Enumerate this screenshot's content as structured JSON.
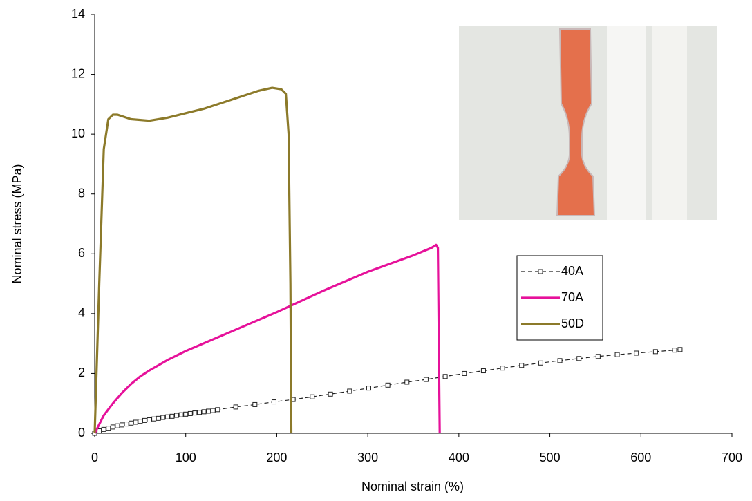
{
  "chart_data": {
    "type": "line",
    "x_label": "Nominal strain (%)",
    "y_label": "Nominal stress (MPa)",
    "xlim": [
      0,
      700
    ],
    "xticks": [
      0,
      100,
      200,
      300,
      400,
      500,
      600,
      700
    ],
    "ylim": [
      0,
      14
    ],
    "yticks": [
      0,
      2,
      4,
      6,
      8,
      10,
      12,
      14
    ],
    "grid": false,
    "series": [
      {
        "name": "40A",
        "color": "#222222",
        "dashed": true,
        "marker": "square",
        "x": [
          0,
          5,
          10,
          15,
          20,
          25,
          30,
          35,
          40,
          45,
          50,
          55,
          60,
          65,
          70,
          75,
          80,
          85,
          90,
          95,
          100,
          105,
          110,
          115,
          120,
          125,
          130,
          135,
          155,
          176,
          197,
          218,
          239,
          259,
          280,
          301,
          322,
          343,
          364,
          385,
          406,
          427,
          448,
          469,
          490,
          511,
          532,
          553,
          574,
          595,
          616,
          637,
          643
        ],
        "values": [
          0,
          0.08,
          0.13,
          0.17,
          0.21,
          0.25,
          0.28,
          0.31,
          0.34,
          0.37,
          0.4,
          0.43,
          0.45,
          0.48,
          0.5,
          0.53,
          0.55,
          0.57,
          0.6,
          0.62,
          0.64,
          0.66,
          0.68,
          0.7,
          0.72,
          0.74,
          0.76,
          0.79,
          0.88,
          0.96,
          1.05,
          1.13,
          1.22,
          1.31,
          1.41,
          1.51,
          1.61,
          1.71,
          1.8,
          1.9,
          2.0,
          2.09,
          2.18,
          2.27,
          2.35,
          2.43,
          2.5,
          2.57,
          2.63,
          2.68,
          2.73,
          2.78,
          2.8
        ]
      },
      {
        "name": "70A",
        "color": "#e6119a",
        "dashed": false,
        "marker": "none",
        "x": [
          0,
          5,
          10,
          20,
          30,
          40,
          50,
          60,
          80,
          100,
          150,
          200,
          250,
          300,
          350,
          370,
          375,
          377,
          378,
          379
        ],
        "values": [
          0,
          0.3,
          0.6,
          1.0,
          1.35,
          1.65,
          1.9,
          2.1,
          2.45,
          2.75,
          3.4,
          4.05,
          4.75,
          5.4,
          5.95,
          6.2,
          6.3,
          6.2,
          3,
          0
        ]
      },
      {
        "name": "50D",
        "color": "#8c7a2a",
        "dashed": false,
        "marker": "none",
        "x": [
          0,
          5,
          10,
          15,
          20,
          25,
          40,
          60,
          80,
          100,
          120,
          150,
          180,
          195,
          205,
          210,
          213,
          215,
          216
        ],
        "values": [
          0,
          5,
          9.5,
          10.5,
          10.65,
          10.65,
          10.5,
          10.45,
          10.55,
          10.7,
          10.85,
          11.15,
          11.45,
          11.55,
          11.5,
          11.35,
          10,
          5,
          0
        ]
      }
    ]
  }
}
